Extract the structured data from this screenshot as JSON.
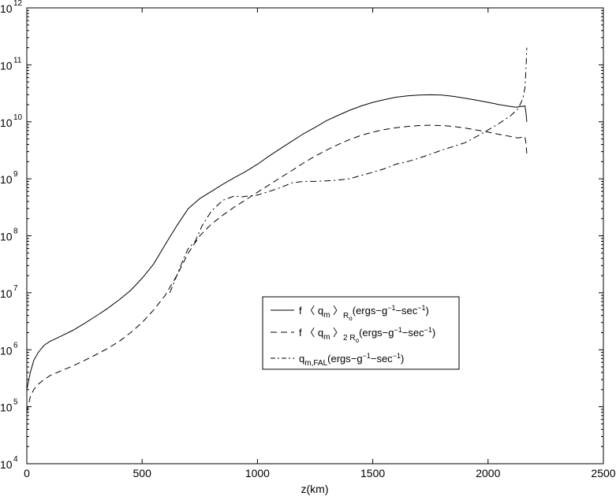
{
  "chart_data": {
    "type": "line",
    "xlabel": "z(km)",
    "ylabel": "",
    "xlim": [
      0,
      2500
    ],
    "ylim": [
      10000,
      1000000000000
    ],
    "yscale": "log",
    "grid": false,
    "legend_placement": "center-right",
    "x_ticks": [
      "0",
      "500",
      "1000",
      "1500",
      "2000",
      "2500"
    ],
    "y_ticks": [
      {
        "base": "10",
        "exp": "4"
      },
      {
        "base": "10",
        "exp": "5"
      },
      {
        "base": "10",
        "exp": "6"
      },
      {
        "base": "10",
        "exp": "7"
      },
      {
        "base": "10",
        "exp": "8"
      },
      {
        "base": "10",
        "exp": "9"
      },
      {
        "base": "10",
        "exp": "10"
      },
      {
        "base": "10",
        "exp": "11"
      },
      {
        "base": "10",
        "exp": "12"
      }
    ],
    "series": [
      {
        "name": "f 〈 q_m 〉_R₀ (ergs−g⁻¹−sec⁻¹)",
        "legend": {
          "main": "f 〈 q",
          "sub1": "m",
          "mid": "〉",
          "sub2": "R",
          "subsub": "o",
          "unit_pre": "(ergs−g",
          "exp1": "−1",
          "unit_mid": "−sec",
          "exp2": "−1",
          "unit_post": ")"
        },
        "style": "solid",
        "x": [
          0,
          15,
          30,
          50,
          75,
          100,
          150,
          200,
          250,
          300,
          350,
          400,
          450,
          500,
          550,
          600,
          650,
          700,
          750,
          800,
          850,
          900,
          950,
          1000,
          1050,
          1100,
          1150,
          1200,
          1250,
          1300,
          1350,
          1400,
          1450,
          1500,
          1550,
          1600,
          1650,
          1700,
          1750,
          1800,
          1850,
          1900,
          1950,
          2000,
          2050,
          2100,
          2120,
          2140,
          2160,
          2165,
          2168
        ],
        "y": [
          200000,
          400000,
          650000,
          900000,
          1200000,
          1400000,
          1750000,
          2200000,
          2900000,
          3900000,
          5300000,
          7500000,
          11000000,
          18000000,
          32000000,
          70000000,
          150000000,
          300000000,
          450000000,
          600000000,
          800000000,
          1050000000,
          1350000000,
          1800000000,
          2500000000,
          3400000000,
          4600000000,
          6200000000,
          8000000000,
          10500000000,
          13000000000,
          16000000000,
          19000000000,
          22000000000,
          24500000000,
          27000000000,
          28500000000,
          29500000000,
          29800000000,
          29500000000,
          28000000000,
          26000000000,
          24000000000,
          22000000000,
          20000000000,
          18500000000,
          18000000000,
          18500000000,
          19000000000,
          14000000000,
          10000000000
        ]
      },
      {
        "name": "f 〈 q_m 〉_2R₀ (ergs−g⁻¹−sec⁻¹)",
        "legend": {
          "main": "f 〈 q",
          "sub1": "m",
          "mid": "〉",
          "sub2": "2 R",
          "subsub": "o",
          "unit_pre": "(ergs−g",
          "exp1": "−1",
          "unit_mid": "−sec",
          "exp2": "−1",
          "unit_post": ")"
        },
        "style": "dashed",
        "x": [
          0,
          15,
          30,
          50,
          75,
          100,
          150,
          200,
          250,
          300,
          350,
          400,
          450,
          500,
          550,
          600,
          650,
          700,
          750,
          800,
          850,
          900,
          950,
          1000,
          1050,
          1100,
          1150,
          1200,
          1250,
          1300,
          1350,
          1400,
          1450,
          1500,
          1550,
          1600,
          1650,
          1700,
          1750,
          1800,
          1850,
          1900,
          1950,
          2000,
          2050,
          2100,
          2130,
          2160,
          2165,
          2168
        ],
        "y": [
          80000,
          150000,
          200000,
          250000,
          300000,
          350000,
          430000,
          520000,
          650000,
          820000,
          1050000,
          1400000,
          2000000,
          3000000,
          5000000,
          9000000,
          20000000,
          50000000,
          100000000,
          160000000,
          230000000,
          320000000,
          430000000,
          580000000,
          780000000,
          1050000000,
          1400000000,
          1900000000,
          2500000000,
          3200000000,
          4000000000,
          4900000000,
          5800000000,
          6600000000,
          7300000000,
          7900000000,
          8300000000,
          8600000000,
          8700000000,
          8600000000,
          8300000000,
          7800000000,
          7200000000,
          6600000000,
          6000000000,
          5500000000,
          5200000000,
          5500000000,
          4000000000,
          2800000000
        ]
      },
      {
        "name": "q_m,FAL (ergs−g⁻¹−sec⁻¹)",
        "legend": {
          "main": "q",
          "sub1": "m,FAL",
          "mid": "",
          "sub2": "",
          "subsub": "",
          "unit_pre": "(ergs−g",
          "exp1": "−1",
          "unit_mid": "−sec",
          "exp2": "−1",
          "unit_post": ")"
        },
        "style": "dashdot",
        "x": [
          620,
          650,
          680,
          700,
          730,
          760,
          800,
          850,
          900,
          930,
          960,
          1000,
          1050,
          1100,
          1150,
          1200,
          1250,
          1300,
          1350,
          1400,
          1450,
          1500,
          1550,
          1600,
          1650,
          1700,
          1750,
          1800,
          1850,
          1900,
          1950,
          2000,
          2050,
          2100,
          2130,
          2150,
          2160,
          2165,
          2168
        ],
        "y": [
          10000000,
          20000000,
          40000000,
          60000000,
          80000000,
          150000000,
          270000000,
          420000000,
          500000000,
          480000000,
          500000000,
          520000000,
          600000000,
          700000000,
          850000000,
          900000000,
          900000000,
          920000000,
          950000000,
          1000000000,
          1150000000,
          1300000000,
          1500000000,
          1800000000,
          2000000000,
          2300000000,
          2700000000,
          3200000000,
          3700000000,
          4300000000,
          5500000000,
          7200000000,
          9500000000,
          13000000000,
          17000000000,
          25000000000,
          40000000000,
          90000000000,
          200000000000
        ]
      }
    ]
  }
}
